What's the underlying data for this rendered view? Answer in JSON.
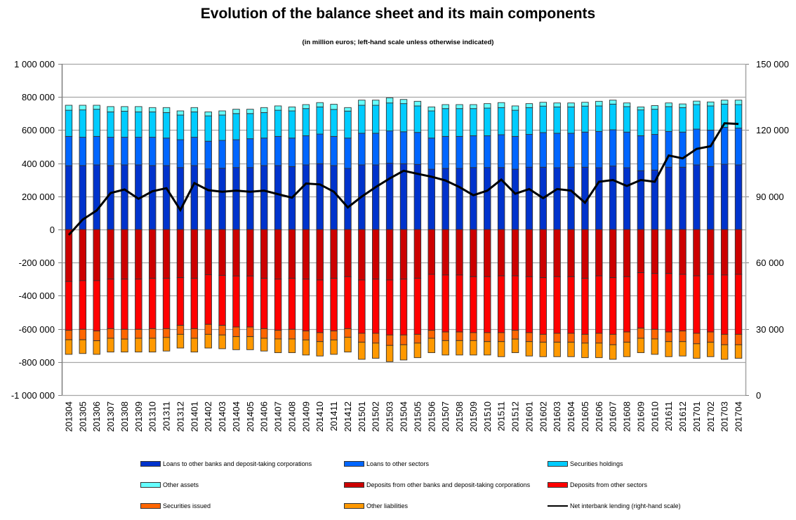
{
  "chart_data": {
    "type": "bar",
    "stacked": true,
    "title": "Evolution of the balance sheet and its main components",
    "subtitle": "(in million euros; left-hand scale unless otherwise indicated)",
    "xlabel": "",
    "ylabel": "",
    "grid": true,
    "legend_position": "bottom",
    "categories": [
      "201304",
      "201305",
      "201306",
      "201307",
      "201308",
      "201309",
      "201310",
      "201311",
      "201312",
      "201401",
      "201402",
      "201403",
      "201404",
      "201405",
      "201406",
      "201407",
      "201408",
      "201409",
      "201410",
      "201411",
      "201412",
      "201501",
      "201502",
      "201503",
      "201504",
      "201505",
      "201506",
      "201507",
      "201508",
      "201509",
      "201510",
      "201511",
      "201512",
      "201601",
      "201602",
      "201603",
      "201604",
      "201605",
      "201606",
      "201607",
      "201608",
      "201609",
      "201610",
      "201611",
      "201612",
      "201701",
      "201702",
      "201703",
      "201704"
    ],
    "left_axis": {
      "min": -1000000,
      "max": 1000000,
      "ticks": [
        1000000,
        800000,
        600000,
        400000,
        200000,
        0,
        -200000,
        -400000,
        -600000,
        -800000,
        -1000000
      ],
      "tick_labels": [
        "1 000 000",
        "800 000",
        "600 000",
        "400 000",
        "200 000",
        "0",
        "-200 000",
        "-400 000",
        "-600 000",
        "-800 000",
        "-1 000 000"
      ]
    },
    "right_axis": {
      "min": 0,
      "max": 150000,
      "ticks": [
        150000,
        120000,
        90000,
        60000,
        30000,
        0
      ],
      "tick_labels": [
        "150 000",
        "120 000",
        "90 000",
        "60 000",
        "30 000",
        "0"
      ]
    },
    "series": [
      {
        "name": "Loans to other banks and deposit-taking corporations",
        "color": "#0033CC",
        "axis": "left",
        "values": [
          385000,
          386000,
          390000,
          386000,
          390000,
          390000,
          386000,
          386000,
          374000,
          386000,
          366000,
          370000,
          374000,
          374000,
          386000,
          386000,
          380000,
          390000,
          397000,
          386000,
          369000,
          390000,
          390000,
          400000,
          397000,
          393000,
          364000,
          369000,
          369000,
          374000,
          374000,
          374000,
          364000,
          376000,
          376000,
          373000,
          376000,
          376000,
          373000,
          383000,
          373000,
          355000,
          359000,
          376000,
          376000,
          390000,
          380000,
          394000,
          390000
        ]
      },
      {
        "name": "Loans to other sectors",
        "color": "#0066FF",
        "axis": "left",
        "values": [
          177000,
          171000,
          172000,
          171000,
          167000,
          167000,
          171000,
          166000,
          168000,
          171000,
          167000,
          168000,
          168000,
          174000,
          166000,
          176000,
          172000,
          176000,
          179000,
          176000,
          183000,
          191000,
          191000,
          195000,
          193000,
          193000,
          188000,
          193000,
          193000,
          192000,
          192000,
          198000,
          198000,
          198000,
          209000,
          208000,
          205000,
          212000,
          219000,
          219000,
          215000,
          211000,
          215000,
          216000,
          212000,
          216000,
          220000,
          223000,
          222000
        ]
      },
      {
        "name": "Securities holdings",
        "color": "#00CCFF",
        "axis": "left",
        "values": [
          158000,
          165000,
          164000,
          153000,
          157000,
          153000,
          153000,
          154000,
          149000,
          153000,
          153000,
          153000,
          158000,
          152000,
          154000,
          158000,
          164000,
          164000,
          164000,
          163000,
          163000,
          169000,
          169000,
          169000,
          170000,
          160000,
          164000,
          168000,
          168000,
          164000,
          167000,
          164000,
          158000,
          162000,
          160000,
          159000,
          159000,
          157000,
          154000,
          155000,
          154000,
          156000,
          152000,
          150000,
          148000,
          148000,
          146000,
          140000,
          142000
        ]
      },
      {
        "name": "Other assets",
        "color": "#66FFFF",
        "axis": "left",
        "values": [
          30000,
          28000,
          24000,
          32000,
          28000,
          32000,
          26000,
          30000,
          25000,
          26000,
          24000,
          25000,
          26000,
          26000,
          30000,
          26000,
          24000,
          24000,
          26000,
          31000,
          21000,
          31000,
          31000,
          31000,
          25000,
          28000,
          24000,
          24000,
          24000,
          24000,
          27000,
          30000,
          26000,
          24000,
          23000,
          24000,
          24000,
          23000,
          28000,
          24000,
          22000,
          18000,
          22000,
          22000,
          22000,
          21000,
          24000,
          24000,
          27000
        ]
      },
      {
        "name": "Deposits from other banks and deposit-taking corporations",
        "color": "#CC0000",
        "axis": "left",
        "values": [
          -314000,
          -309000,
          -309000,
          -300000,
          -300000,
          -300000,
          -295000,
          -295000,
          -291000,
          -295000,
          -273000,
          -277000,
          -281000,
          -281000,
          -295000,
          -300000,
          -295000,
          -300000,
          -305000,
          -295000,
          -285000,
          -305000,
          -300000,
          -305000,
          -300000,
          -295000,
          -271000,
          -275000,
          -275000,
          -285000,
          -285000,
          -280000,
          -280000,
          -285000,
          -291000,
          -285000,
          -285000,
          -295000,
          -280000,
          -291000,
          -285000,
          -261000,
          -266000,
          -266000,
          -271000,
          -280000,
          -271000,
          -275000,
          -271000
        ]
      },
      {
        "name": "Deposits from other sectors",
        "color": "#FF0000",
        "axis": "left",
        "values": [
          -295000,
          -294000,
          -304000,
          -299000,
          -303000,
          -303000,
          -304000,
          -304000,
          -288000,
          -304000,
          -300000,
          -302000,
          -308000,
          -308000,
          -304000,
          -309000,
          -308000,
          -313000,
          -318000,
          -318000,
          -314000,
          -322000,
          -327000,
          -332000,
          -337000,
          -338000,
          -338000,
          -344000,
          -344000,
          -338000,
          -338000,
          -343000,
          -329000,
          -338000,
          -342000,
          -342000,
          -342000,
          -338000,
          -347000,
          -342000,
          -334000,
          -335000,
          -337000,
          -353000,
          -342000,
          -347000,
          -348000,
          -358000,
          -362000
        ]
      },
      {
        "name": "Securities issued",
        "color": "#FF6600",
        "axis": "left",
        "values": [
          -57000,
          -63000,
          -59000,
          -58000,
          -59000,
          -54000,
          -58000,
          -53000,
          -54000,
          -58000,
          -60000,
          -58000,
          -58000,
          -58000,
          -58000,
          -52000,
          -58000,
          -54000,
          -54000,
          -54000,
          -52000,
          -54000,
          -59000,
          -63000,
          -59000,
          -53000,
          -48000,
          -52000,
          -52000,
          -48000,
          -54000,
          -54000,
          -53000,
          -54000,
          -48000,
          -54000,
          -54000,
          -53000,
          -59000,
          -63000,
          -62000,
          -61000,
          -58000,
          -58000,
          -64000,
          -63000,
          -62000,
          -63000,
          -63000
        ]
      },
      {
        "name": "Other liabilities",
        "color": "#FF9900",
        "axis": "left",
        "values": [
          -88000,
          -83000,
          -82000,
          -83000,
          -78000,
          -83000,
          -83000,
          -82000,
          -83000,
          -83000,
          -83000,
          -83000,
          -79000,
          -79000,
          -77000,
          -83000,
          -83000,
          -91000,
          -87000,
          -87000,
          -89000,
          -103000,
          -92000,
          -98000,
          -92000,
          -88000,
          -87000,
          -87000,
          -87000,
          -87000,
          -81000,
          -91000,
          -82000,
          -87000,
          -87000,
          -87000,
          -87000,
          -88000,
          -88000,
          -88000,
          -87000,
          -87000,
          -93000,
          -91000,
          -87000,
          -88000,
          -87000,
          -88000,
          -82000
        ]
      }
    ],
    "line": {
      "name": "Net interbank lending (right-hand scale)",
      "color": "#000000",
      "axis": "right",
      "values": [
        72500,
        79500,
        83600,
        91500,
        93100,
        88900,
        92300,
        93700,
        83800,
        96000,
        92800,
        92100,
        92600,
        92100,
        92600,
        91000,
        89400,
        95800,
        95400,
        92100,
        85000,
        89900,
        94200,
        98100,
        101600,
        100200,
        98900,
        97200,
        94200,
        90500,
        92600,
        97600,
        91200,
        93300,
        89200,
        93300,
        92600,
        87100,
        96600,
        97400,
        94700,
        97400,
        96600,
        108500,
        107200,
        111500,
        112700,
        123100,
        122800
      ]
    }
  }
}
